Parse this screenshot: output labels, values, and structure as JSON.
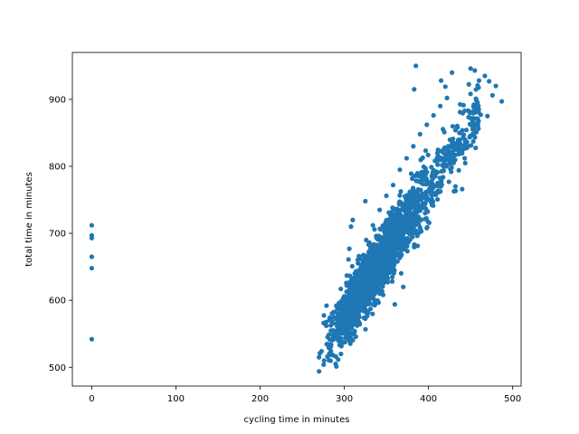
{
  "chart_data": {
    "type": "scatter",
    "title": "",
    "xlabel": "cycling time in minutes",
    "ylabel": "total time in minutes",
    "xlim": [
      -23,
      510
    ],
    "ylim": [
      472,
      970
    ],
    "grid": false,
    "xticks": [
      0,
      100,
      200,
      300,
      400,
      500
    ],
    "yticks": [
      500,
      600,
      700,
      800,
      900
    ],
    "marker_color": "#1f77b4",
    "marker": "circle",
    "outliers_at_zero": [
      {
        "x": 0,
        "y": 712
      },
      {
        "x": 0,
        "y": 697
      },
      {
        "x": 0,
        "y": 693
      },
      {
        "x": 0,
        "y": 665
      },
      {
        "x": 0,
        "y": 648
      },
      {
        "x": 0,
        "y": 542
      }
    ],
    "scattered_points": [
      {
        "x": 270,
        "y": 494
      },
      {
        "x": 270,
        "y": 515
      },
      {
        "x": 271,
        "y": 521
      },
      {
        "x": 273,
        "y": 524
      },
      {
        "x": 276,
        "y": 510
      },
      {
        "x": 280,
        "y": 516
      },
      {
        "x": 283,
        "y": 572
      },
      {
        "x": 296,
        "y": 520
      },
      {
        "x": 299,
        "y": 572
      },
      {
        "x": 300,
        "y": 606
      },
      {
        "x": 303,
        "y": 637
      },
      {
        "x": 305,
        "y": 661
      },
      {
        "x": 306,
        "y": 677
      },
      {
        "x": 308,
        "y": 710
      },
      {
        "x": 310,
        "y": 720
      },
      {
        "x": 325,
        "y": 748
      },
      {
        "x": 360,
        "y": 594
      },
      {
        "x": 370,
        "y": 620
      },
      {
        "x": 383,
        "y": 915
      },
      {
        "x": 385,
        "y": 950
      },
      {
        "x": 415,
        "y": 928
      },
      {
        "x": 420,
        "y": 919
      },
      {
        "x": 428,
        "y": 940
      },
      {
        "x": 440,
        "y": 766
      },
      {
        "x": 450,
        "y": 946
      },
      {
        "x": 455,
        "y": 943
      },
      {
        "x": 460,
        "y": 928
      },
      {
        "x": 467,
        "y": 935
      },
      {
        "x": 472,
        "y": 927
      },
      {
        "x": 480,
        "y": 920
      },
      {
        "x": 487,
        "y": 897
      },
      {
        "x": 462,
        "y": 877
      },
      {
        "x": 470,
        "y": 875
      },
      {
        "x": 476,
        "y": 906
      },
      {
        "x": 452,
        "y": 860
      },
      {
        "x": 447,
        "y": 830
      },
      {
        "x": 443,
        "y": 812
      },
      {
        "x": 436,
        "y": 794
      },
      {
        "x": 432,
        "y": 770
      },
      {
        "x": 426,
        "y": 796
      },
      {
        "x": 412,
        "y": 770
      },
      {
        "x": 404,
        "y": 751
      },
      {
        "x": 396,
        "y": 730
      },
      {
        "x": 388,
        "y": 700
      },
      {
        "x": 378,
        "y": 690
      },
      {
        "x": 368,
        "y": 668
      },
      {
        "x": 358,
        "y": 650
      },
      {
        "x": 350,
        "y": 630
      },
      {
        "x": 342,
        "y": 610
      },
      {
        "x": 334,
        "y": 594
      },
      {
        "x": 326,
        "y": 582
      },
      {
        "x": 318,
        "y": 566
      },
      {
        "x": 312,
        "y": 552
      },
      {
        "x": 306,
        "y": 540
      },
      {
        "x": 318,
        "y": 665
      },
      {
        "x": 326,
        "y": 690
      },
      {
        "x": 334,
        "y": 712
      },
      {
        "x": 342,
        "y": 735
      },
      {
        "x": 350,
        "y": 756
      },
      {
        "x": 358,
        "y": 772
      },
      {
        "x": 366,
        "y": 795
      },
      {
        "x": 374,
        "y": 812
      },
      {
        "x": 382,
        "y": 830
      },
      {
        "x": 390,
        "y": 848
      },
      {
        "x": 398,
        "y": 862
      },
      {
        "x": 406,
        "y": 876
      },
      {
        "x": 414,
        "y": 890
      },
      {
        "x": 422,
        "y": 902
      }
    ],
    "main_cluster": {
      "description": "dense band of ~2000 points",
      "slope_min_per_min": 1.9,
      "anchor": {
        "x": 300,
        "y": 578
      },
      "x_range": [
        275,
        470
      ],
      "y_spread": 22
    }
  }
}
